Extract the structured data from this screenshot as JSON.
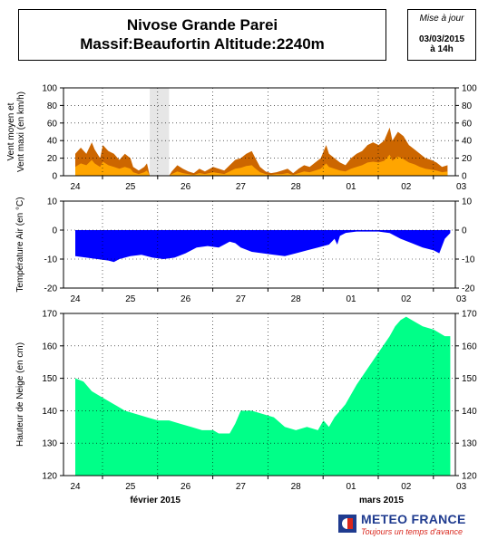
{
  "header": {
    "title_line1": "Nivose Grande Parei",
    "title_line2": "Massif:Beaufortin Altitude:2240m",
    "update_label": "Mise à jour",
    "update_date": "03/03/2015",
    "update_time": "à 14h"
  },
  "logo": {
    "name": "METEO FRANCE",
    "slogan": "Toujours un temps d'avance",
    "colors": {
      "text": "#1f3b8f",
      "slogan": "#d9261c"
    }
  },
  "chart_data": [
    {
      "type": "area",
      "ylabel": "Vent moyen et Vent maxi (en km/h)",
      "ylim": [
        0,
        100
      ],
      "yticks": [
        0,
        20,
        40,
        60,
        80,
        100
      ],
      "x_tick_labels": [
        "24",
        "25",
        "26",
        "27",
        "28",
        "01",
        "02",
        "03"
      ],
      "grid": true,
      "missing_interval": [
        1.35,
        1.7
      ],
      "series": [
        {
          "color": "#cc6600",
          "points": [
            [
              0.0,
              25
            ],
            [
              0.1,
              32
            ],
            [
              0.2,
              25
            ],
            [
              0.3,
              38
            ],
            [
              0.35,
              30
            ],
            [
              0.45,
              20
            ],
            [
              0.5,
              35
            ],
            [
              0.6,
              28
            ],
            [
              0.7,
              25
            ],
            [
              0.8,
              18
            ],
            [
              0.9,
              25
            ],
            [
              1.0,
              20
            ],
            [
              1.05,
              10
            ],
            [
              1.15,
              6
            ],
            [
              1.25,
              10
            ],
            [
              1.3,
              14
            ],
            [
              1.35,
              0
            ],
            [
              1.7,
              0
            ],
            [
              1.75,
              5
            ],
            [
              1.85,
              12
            ],
            [
              1.95,
              8
            ],
            [
              2.05,
              5
            ],
            [
              2.15,
              3
            ],
            [
              2.25,
              8
            ],
            [
              2.35,
              5
            ],
            [
              2.5,
              10
            ],
            [
              2.6,
              8
            ],
            [
              2.7,
              6
            ],
            [
              2.8,
              12
            ],
            [
              2.9,
              18
            ],
            [
              3.0,
              20
            ],
            [
              3.1,
              25
            ],
            [
              3.2,
              28
            ],
            [
              3.25,
              22
            ],
            [
              3.35,
              10
            ],
            [
              3.45,
              5
            ],
            [
              3.55,
              3
            ],
            [
              3.65,
              4
            ],
            [
              3.75,
              6
            ],
            [
              3.85,
              8
            ],
            [
              3.95,
              3
            ],
            [
              4.05,
              8
            ],
            [
              4.15,
              12
            ],
            [
              4.25,
              10
            ],
            [
              4.35,
              15
            ],
            [
              4.45,
              20
            ],
            [
              4.55,
              35
            ],
            [
              4.6,
              25
            ],
            [
              4.7,
              20
            ],
            [
              4.8,
              15
            ],
            [
              4.9,
              12
            ],
            [
              5.0,
              20
            ],
            [
              5.1,
              25
            ],
            [
              5.2,
              28
            ],
            [
              5.3,
              35
            ],
            [
              5.4,
              38
            ],
            [
              5.5,
              35
            ],
            [
              5.6,
              40
            ],
            [
              5.7,
              55
            ],
            [
              5.75,
              40
            ],
            [
              5.85,
              50
            ],
            [
              5.95,
              45
            ],
            [
              6.05,
              35
            ],
            [
              6.15,
              30
            ],
            [
              6.25,
              25
            ],
            [
              6.35,
              20
            ],
            [
              6.45,
              18
            ],
            [
              6.55,
              15
            ],
            [
              6.65,
              10
            ],
            [
              6.75,
              12
            ]
          ]
        },
        {
          "color": "#ffa500",
          "points": [
            [
              0.0,
              10
            ],
            [
              0.1,
              14
            ],
            [
              0.2,
              12
            ],
            [
              0.3,
              18
            ],
            [
              0.35,
              14
            ],
            [
              0.45,
              10
            ],
            [
              0.5,
              16
            ],
            [
              0.6,
              12
            ],
            [
              0.7,
              10
            ],
            [
              0.8,
              8
            ],
            [
              0.9,
              10
            ],
            [
              1.0,
              8
            ],
            [
              1.05,
              4
            ],
            [
              1.15,
              2
            ],
            [
              1.25,
              4
            ],
            [
              1.3,
              6
            ],
            [
              1.35,
              0
            ],
            [
              1.7,
              0
            ],
            [
              1.75,
              2
            ],
            [
              1.85,
              5
            ],
            [
              1.95,
              3
            ],
            [
              2.05,
              2
            ],
            [
              2.15,
              1
            ],
            [
              2.25,
              3
            ],
            [
              2.35,
              2
            ],
            [
              2.5,
              4
            ],
            [
              2.6,
              3
            ],
            [
              2.7,
              2
            ],
            [
              2.8,
              5
            ],
            [
              2.9,
              8
            ],
            [
              3.0,
              9
            ],
            [
              3.1,
              11
            ],
            [
              3.2,
              12
            ],
            [
              3.25,
              9
            ],
            [
              3.35,
              4
            ],
            [
              3.45,
              2
            ],
            [
              3.55,
              1
            ],
            [
              3.65,
              2
            ],
            [
              3.75,
              2
            ],
            [
              3.85,
              3
            ],
            [
              3.95,
              1
            ],
            [
              4.05,
              3
            ],
            [
              4.15,
              5
            ],
            [
              4.25,
              4
            ],
            [
              4.35,
              6
            ],
            [
              4.45,
              8
            ],
            [
              4.55,
              14
            ],
            [
              4.6,
              10
            ],
            [
              4.7,
              8
            ],
            [
              4.8,
              6
            ],
            [
              4.9,
              5
            ],
            [
              5.0,
              8
            ],
            [
              5.1,
              10
            ],
            [
              5.2,
              12
            ],
            [
              5.3,
              15
            ],
            [
              5.4,
              16
            ],
            [
              5.5,
              15
            ],
            [
              5.6,
              17
            ],
            [
              5.7,
              24
            ],
            [
              5.75,
              17
            ],
            [
              5.85,
              22
            ],
            [
              5.95,
              19
            ],
            [
              6.05,
              15
            ],
            [
              6.15,
              13
            ],
            [
              6.25,
              10
            ],
            [
              6.35,
              8
            ],
            [
              6.45,
              7
            ],
            [
              6.55,
              6
            ],
            [
              6.65,
              4
            ],
            [
              6.75,
              5
            ]
          ]
        }
      ]
    },
    {
      "type": "area",
      "ylabel": "Température Air (en °C)",
      "ylim": [
        -20,
        10
      ],
      "yticks": [
        -20,
        -10,
        0,
        10
      ],
      "x_tick_labels": [
        "24",
        "25",
        "26",
        "27",
        "28",
        "01",
        "02",
        "03"
      ],
      "grid": true,
      "series": [
        {
          "color": "#0000ff",
          "points": [
            [
              0.0,
              -9
            ],
            [
              0.2,
              -9.5
            ],
            [
              0.4,
              -10
            ],
            [
              0.6,
              -10.5
            ],
            [
              0.7,
              -11
            ],
            [
              0.8,
              -10
            ],
            [
              1.0,
              -9
            ],
            [
              1.2,
              -8.5
            ],
            [
              1.4,
              -9.5
            ],
            [
              1.6,
              -10
            ],
            [
              1.8,
              -9.5
            ],
            [
              2.0,
              -8
            ],
            [
              2.2,
              -6
            ],
            [
              2.4,
              -5.5
            ],
            [
              2.6,
              -6
            ],
            [
              2.7,
              -5
            ],
            [
              2.8,
              -4
            ],
            [
              2.9,
              -4.5
            ],
            [
              3.0,
              -6
            ],
            [
              3.2,
              -7.5
            ],
            [
              3.4,
              -8
            ],
            [
              3.6,
              -8.5
            ],
            [
              3.8,
              -9
            ],
            [
              4.0,
              -8
            ],
            [
              4.2,
              -7
            ],
            [
              4.4,
              -6
            ],
            [
              4.6,
              -5
            ],
            [
              4.7,
              -3
            ],
            [
              4.75,
              -5
            ],
            [
              4.8,
              -2
            ],
            [
              4.9,
              -1
            ],
            [
              5.1,
              -0.5
            ],
            [
              5.3,
              -0.5
            ],
            [
              5.5,
              -0.5
            ],
            [
              5.7,
              -1
            ],
            [
              5.9,
              -3
            ],
            [
              6.1,
              -4.5
            ],
            [
              6.3,
              -6
            ],
            [
              6.5,
              -7
            ],
            [
              6.6,
              -8
            ],
            [
              6.7,
              -3
            ],
            [
              6.8,
              -1
            ]
          ]
        }
      ]
    },
    {
      "type": "area",
      "ylabel": "Hauteur de Neige (en cm)",
      "ylim": [
        120,
        170
      ],
      "yticks": [
        120,
        130,
        140,
        150,
        160,
        170
      ],
      "x_tick_labels": [
        "24",
        "25",
        "26",
        "27",
        "28",
        "01",
        "02",
        "03"
      ],
      "month_labels": [
        "février 2015",
        "mars 2015"
      ],
      "grid": true,
      "series": [
        {
          "color": "#00ff88",
          "points": [
            [
              0.0,
              150
            ],
            [
              0.15,
              149
            ],
            [
              0.3,
              146
            ],
            [
              0.5,
              144
            ],
            [
              0.7,
              142
            ],
            [
              0.9,
              140
            ],
            [
              1.1,
              139
            ],
            [
              1.3,
              138
            ],
            [
              1.5,
              137
            ],
            [
              1.7,
              137
            ],
            [
              1.9,
              136
            ],
            [
              2.1,
              135
            ],
            [
              2.3,
              134
            ],
            [
              2.5,
              134
            ],
            [
              2.6,
              133
            ],
            [
              2.8,
              133
            ],
            [
              2.9,
              136
            ],
            [
              3.0,
              140
            ],
            [
              3.2,
              140
            ],
            [
              3.4,
              139
            ],
            [
              3.6,
              138
            ],
            [
              3.8,
              135
            ],
            [
              4.0,
              134
            ],
            [
              4.2,
              135
            ],
            [
              4.4,
              134
            ],
            [
              4.5,
              137
            ],
            [
              4.6,
              135
            ],
            [
              4.7,
              138
            ],
            [
              4.9,
              142
            ],
            [
              5.1,
              148
            ],
            [
              5.3,
              153
            ],
            [
              5.5,
              158
            ],
            [
              5.7,
              163
            ],
            [
              5.8,
              166
            ],
            [
              5.9,
              168
            ],
            [
              6.0,
              169
            ],
            [
              6.1,
              168
            ],
            [
              6.3,
              166
            ],
            [
              6.5,
              165
            ],
            [
              6.7,
              163
            ],
            [
              6.8,
              163
            ]
          ]
        }
      ]
    }
  ]
}
